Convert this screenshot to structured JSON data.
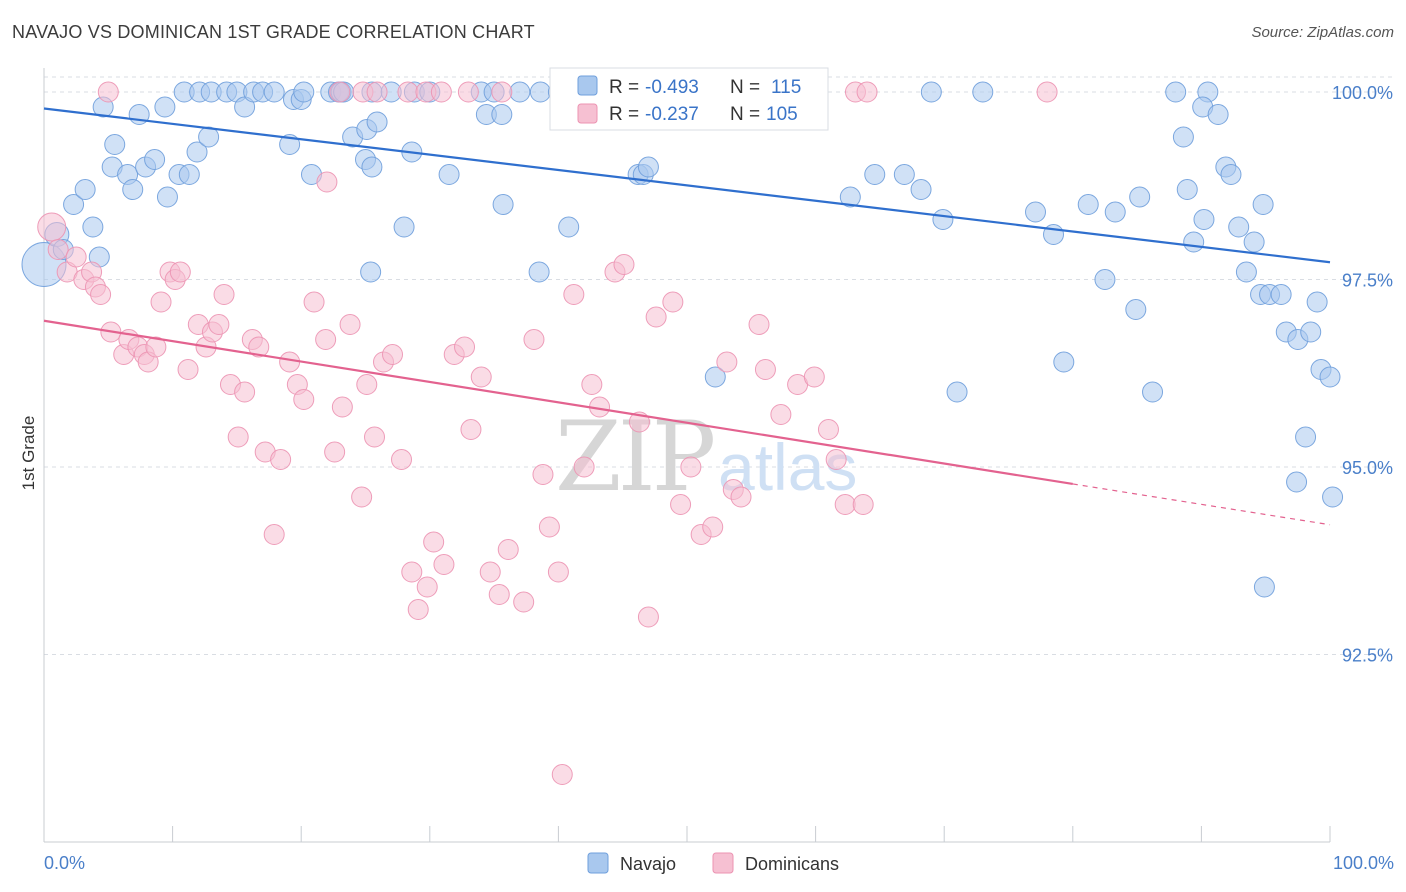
{
  "header": {
    "title": "NAVAJO VS DOMINICAN 1ST GRADE CORRELATION CHART",
    "source": "Source: ZipAtlas.com"
  },
  "watermark": {
    "left": "ZIP",
    "right": "atlas"
  },
  "legend_box": {
    "rows": [
      {
        "r_label": "R =",
        "r_value": "-0.493",
        "n_label": "N =",
        "n_value": "115"
      },
      {
        "r_label": "R =",
        "r_value": "-0.237",
        "n_label": "N =",
        "n_value": "105"
      }
    ]
  },
  "colors": {
    "navajo_fill": "#a9c8ee",
    "navajo_stroke": "#6f9fdc",
    "navajo_line": "#2f6fce",
    "dominican_fill": "#f6c0d2",
    "dominican_stroke": "#ec93b2",
    "dominican_line": "#e3628f",
    "grid": "#d9dde3",
    "label_blue": "#4a7fc9"
  },
  "chart_data": {
    "type": "scatter",
    "title": "NAVAJO VS DOMINICAN 1ST GRADE CORRELATION CHART",
    "xlabel": "",
    "ylabel": "1st Grade",
    "xlim": [
      0,
      100
    ],
    "ylim": [
      90.0,
      100.4
    ],
    "x_tick_labels": [
      "0.0%",
      "100.0%"
    ],
    "y_ticks": [
      {
        "value": 100.0,
        "label": "100.0%"
      },
      {
        "value": 97.5,
        "label": "97.5%"
      },
      {
        "value": 95.0,
        "label": "95.0%"
      },
      {
        "value": 92.5,
        "label": "92.5%"
      }
    ],
    "legend": [
      "Navajo",
      "Dominicans"
    ],
    "series": [
      {
        "name": "Navajo",
        "r": -0.493,
        "n": 115,
        "trend": {
          "x0": 0,
          "y0": 99.78,
          "x1": 100,
          "y1": 97.73,
          "solid_to": 100
        },
        "points": [
          [
            0,
            97.7,
            22
          ],
          [
            1,
            98.1,
            12
          ],
          [
            1.5,
            97.9,
            10
          ],
          [
            2.3,
            98.5,
            10
          ],
          [
            3.2,
            98.7,
            10
          ],
          [
            3.8,
            98.2,
            10
          ],
          [
            4.3,
            97.8,
            10
          ],
          [
            4.6,
            99.8,
            10
          ],
          [
            5.5,
            99.3,
            10
          ],
          [
            5.3,
            99.0,
            10
          ],
          [
            6.5,
            98.9,
            10
          ],
          [
            6.9,
            98.7,
            10
          ],
          [
            7.4,
            99.7,
            10
          ],
          [
            7.9,
            99.0,
            10
          ],
          [
            8.6,
            99.1,
            10
          ],
          [
            9.6,
            98.6,
            10
          ],
          [
            9.4,
            99.8,
            10
          ],
          [
            10.5,
            98.9,
            10
          ],
          [
            11.3,
            98.9,
            10
          ],
          [
            11.9,
            99.2,
            10
          ],
          [
            12.8,
            99.4,
            10
          ],
          [
            10.9,
            100.0,
            10
          ],
          [
            12.1,
            100.0,
            10
          ],
          [
            13.0,
            100.0,
            10
          ],
          [
            14.2,
            100.0,
            10
          ],
          [
            15.0,
            100.0,
            10
          ],
          [
            15.6,
            99.8,
            10
          ],
          [
            16.3,
            100.0,
            10
          ],
          [
            17.0,
            100.0,
            10
          ],
          [
            17.9,
            100.0,
            10
          ],
          [
            19.1,
            99.3,
            10
          ],
          [
            19.4,
            99.9,
            10
          ],
          [
            20.0,
            99.9,
            10
          ],
          [
            20.2,
            100.0,
            10
          ],
          [
            20.8,
            98.9,
            10
          ],
          [
            22.3,
            100.0,
            10
          ],
          [
            22.9,
            100.0,
            10
          ],
          [
            23.1,
            100.0,
            10
          ],
          [
            23.3,
            100.0,
            10
          ],
          [
            24.0,
            99.4,
            10
          ],
          [
            25.0,
            99.1,
            10
          ],
          [
            25.5,
            99.0,
            10
          ],
          [
            25.5,
            100.0,
            10
          ],
          [
            25.1,
            99.5,
            10
          ],
          [
            25.9,
            99.6,
            10
          ],
          [
            27.0,
            100.0,
            10
          ],
          [
            28.0,
            98.2,
            10
          ],
          [
            28.6,
            99.2,
            10
          ],
          [
            28.8,
            100.0,
            10
          ],
          [
            30.0,
            100.0,
            10
          ],
          [
            25.4,
            97.6,
            10
          ],
          [
            31.5,
            98.9,
            10
          ],
          [
            34.0,
            100.0,
            10
          ],
          [
            34.4,
            99.7,
            10
          ],
          [
            35.0,
            100.0,
            10
          ],
          [
            35.6,
            99.7,
            10
          ],
          [
            35.7,
            98.5,
            10
          ],
          [
            37.0,
            100.0,
            10
          ],
          [
            38.6,
            100.0,
            10
          ],
          [
            38.5,
            97.6,
            10
          ],
          [
            40.0,
            100.0,
            10
          ],
          [
            40.8,
            98.2,
            10
          ],
          [
            41.0,
            100.0,
            10
          ],
          [
            43.0,
            100.0,
            10
          ],
          [
            45.0,
            100.0,
            10
          ],
          [
            46.2,
            98.9,
            10
          ],
          [
            46.6,
            98.9,
            10
          ],
          [
            47.0,
            99.0,
            10
          ],
          [
            50.0,
            100.0,
            10
          ],
          [
            51.0,
            99.8,
            10
          ],
          [
            52.2,
            96.2,
            10
          ],
          [
            55.0,
            100.0,
            10
          ],
          [
            55.6,
            100.0,
            10
          ],
          [
            56.5,
            100.0,
            10
          ],
          [
            57.4,
            100.0,
            10
          ],
          [
            60.0,
            100.0,
            10
          ],
          [
            62.7,
            98.6,
            10
          ],
          [
            64.6,
            98.9,
            10
          ],
          [
            68.2,
            98.7,
            10
          ],
          [
            66.9,
            98.9,
            10
          ],
          [
            69.0,
            100.0,
            10
          ],
          [
            69.9,
            98.3,
            10
          ],
          [
            71.0,
            96.0,
            10
          ],
          [
            73.0,
            100.0,
            10
          ],
          [
            77.1,
            98.4,
            10
          ],
          [
            78.5,
            98.1,
            10
          ],
          [
            79.3,
            96.4,
            10
          ],
          [
            82.5,
            97.5,
            10
          ],
          [
            81.2,
            98.5,
            10
          ],
          [
            83.3,
            98.4,
            10
          ],
          [
            85.2,
            98.6,
            10
          ],
          [
            84.9,
            97.1,
            10
          ],
          [
            86.2,
            96.0,
            10
          ],
          [
            88.0,
            100.0,
            10
          ],
          [
            88.9,
            98.7,
            10
          ],
          [
            88.6,
            99.4,
            10
          ],
          [
            89.4,
            98.0,
            10
          ],
          [
            90.2,
            98.3,
            10
          ],
          [
            90.5,
            100.0,
            10
          ],
          [
            90.1,
            99.8,
            10
          ],
          [
            91.3,
            99.7,
            10
          ],
          [
            91.9,
            99.0,
            10
          ],
          [
            92.3,
            98.9,
            10
          ],
          [
            92.9,
            98.2,
            10
          ],
          [
            93.5,
            97.6,
            10
          ],
          [
            94.1,
            98.0,
            10
          ],
          [
            94.6,
            97.3,
            10
          ],
          [
            95.3,
            97.3,
            10
          ],
          [
            94.8,
            98.5,
            10
          ],
          [
            96.2,
            97.3,
            10
          ],
          [
            96.6,
            96.8,
            10
          ],
          [
            97.5,
            96.7,
            10
          ],
          [
            97.4,
            94.8,
            10
          ],
          [
            98.1,
            95.4,
            10
          ],
          [
            98.5,
            96.8,
            10
          ],
          [
            99.0,
            97.2,
            10
          ],
          [
            99.3,
            96.3,
            10
          ],
          [
            100.0,
            96.2,
            10
          ],
          [
            100.2,
            94.6,
            10
          ],
          [
            94.9,
            93.4,
            10
          ]
        ]
      },
      {
        "name": "Dominicans",
        "r": -0.237,
        "n": 105,
        "trend": {
          "x0": 0,
          "y0": 96.95,
          "x1": 100,
          "y1": 94.23,
          "solid_to": 80
        },
        "points": [
          [
            0.6,
            98.2,
            14
          ],
          [
            1.1,
            97.9,
            10
          ],
          [
            1.8,
            97.6,
            10
          ],
          [
            2.5,
            97.8,
            10
          ],
          [
            3.1,
            97.5,
            10
          ],
          [
            3.7,
            97.6,
            10
          ],
          [
            4.0,
            97.4,
            10
          ],
          [
            4.4,
            97.3,
            10
          ],
          [
            5.2,
            96.8,
            10
          ],
          [
            6.2,
            96.5,
            10
          ],
          [
            6.6,
            96.7,
            10
          ],
          [
            7.3,
            96.6,
            10
          ],
          [
            7.8,
            96.5,
            10
          ],
          [
            8.1,
            96.4,
            10
          ],
          [
            8.7,
            96.6,
            10
          ],
          [
            9.1,
            97.2,
            10
          ],
          [
            9.8,
            97.6,
            10
          ],
          [
            10.2,
            97.5,
            10
          ],
          [
            10.6,
            97.6,
            10
          ],
          [
            11.2,
            96.3,
            10
          ],
          [
            12.0,
            96.9,
            10
          ],
          [
            12.6,
            96.6,
            10
          ],
          [
            13.1,
            96.8,
            10
          ],
          [
            13.6,
            96.9,
            10
          ],
          [
            14.0,
            97.3,
            10
          ],
          [
            14.5,
            96.1,
            10
          ],
          [
            15.1,
            95.4,
            10
          ],
          [
            15.6,
            96.0,
            10
          ],
          [
            16.2,
            96.7,
            10
          ],
          [
            16.7,
            96.6,
            10
          ],
          [
            17.2,
            95.2,
            10
          ],
          [
            17.9,
            94.1,
            10
          ],
          [
            18.4,
            95.1,
            10
          ],
          [
            19.1,
            96.4,
            10
          ],
          [
            19.7,
            96.1,
            10
          ],
          [
            20.2,
            95.9,
            10
          ],
          [
            21.0,
            97.2,
            10
          ],
          [
            21.9,
            96.7,
            10
          ],
          [
            22.6,
            95.2,
            10
          ],
          [
            23.2,
            95.8,
            10
          ],
          [
            23.8,
            96.9,
            10
          ],
          [
            24.7,
            94.6,
            10
          ],
          [
            25.1,
            96.1,
            10
          ],
          [
            25.7,
            95.4,
            10
          ],
          [
            26.4,
            96.4,
            10
          ],
          [
            27.1,
            96.5,
            10
          ],
          [
            27.8,
            95.1,
            10
          ],
          [
            28.6,
            93.6,
            10
          ],
          [
            29.1,
            93.1,
            10
          ],
          [
            29.8,
            93.4,
            10
          ],
          [
            30.3,
            94.0,
            10
          ],
          [
            31.1,
            93.7,
            10
          ],
          [
            31.9,
            96.5,
            10
          ],
          [
            32.7,
            96.6,
            10
          ],
          [
            33.2,
            95.5,
            10
          ],
          [
            34.0,
            96.2,
            10
          ],
          [
            34.7,
            93.6,
            10
          ],
          [
            35.4,
            93.3,
            10
          ],
          [
            36.1,
            93.9,
            10
          ],
          [
            37.3,
            93.2,
            10
          ],
          [
            38.1,
            96.7,
            10
          ],
          [
            38.8,
            94.9,
            10
          ],
          [
            39.3,
            94.2,
            10
          ],
          [
            40.0,
            93.6,
            10
          ],
          [
            41.2,
            97.3,
            10
          ],
          [
            42.0,
            95.0,
            10
          ],
          [
            42.6,
            96.1,
            10
          ],
          [
            43.2,
            95.8,
            10
          ],
          [
            44.4,
            97.6,
            10
          ],
          [
            45.1,
            97.7,
            10
          ],
          [
            46.3,
            95.6,
            10
          ],
          [
            47.0,
            93.0,
            10
          ],
          [
            47.6,
            97.0,
            10
          ],
          [
            48.9,
            97.2,
            10
          ],
          [
            49.5,
            94.5,
            10
          ],
          [
            50.3,
            95.0,
            10
          ],
          [
            51.1,
            94.1,
            10
          ],
          [
            52.0,
            94.2,
            10
          ],
          [
            53.1,
            96.4,
            10
          ],
          [
            53.6,
            94.7,
            10
          ],
          [
            54.2,
            94.6,
            10
          ],
          [
            55.6,
            96.9,
            10
          ],
          [
            56.1,
            96.3,
            10
          ],
          [
            57.3,
            95.7,
            10
          ],
          [
            58.6,
            96.1,
            10
          ],
          [
            59.9,
            96.2,
            10
          ],
          [
            61.0,
            95.5,
            10
          ],
          [
            61.6,
            95.1,
            10
          ],
          [
            62.3,
            94.5,
            10
          ],
          [
            63.1,
            100.0,
            10
          ],
          [
            64.0,
            100.0,
            10
          ],
          [
            22.0,
            98.8,
            10
          ],
          [
            23.0,
            100.0,
            10
          ],
          [
            24.8,
            100.0,
            10
          ],
          [
            25.9,
            100.0,
            10
          ],
          [
            28.3,
            100.0,
            10
          ],
          [
            29.7,
            100.0,
            10
          ],
          [
            30.9,
            100.0,
            10
          ],
          [
            33.0,
            100.0,
            10
          ],
          [
            35.6,
            100.0,
            10
          ],
          [
            5.0,
            100.0,
            10
          ],
          [
            42.9,
            100.0,
            10
          ],
          [
            40.3,
            90.9,
            10
          ],
          [
            63.7,
            94.5,
            10
          ],
          [
            78.0,
            100.0,
            10
          ]
        ]
      }
    ]
  }
}
